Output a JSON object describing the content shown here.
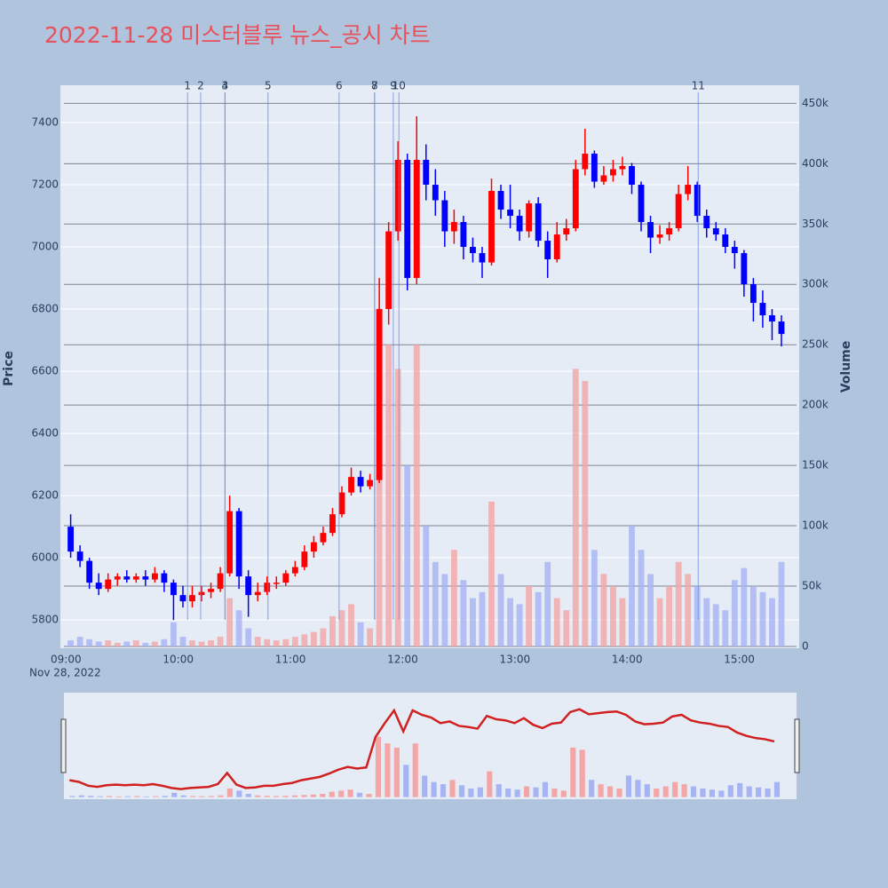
{
  "chart_data": {
    "type": "candlestick",
    "title": "2022-11-28 미스터블루 뉴스_공시 차트",
    "y_label": "Price",
    "y2_label": "Volume",
    "x_date_label": "Nov 28, 2022",
    "xlim": [
      "08:57",
      "15:32"
    ],
    "xticks": [
      "09:00",
      "10:00",
      "11:00",
      "12:00",
      "13:00",
      "14:00",
      "15:00"
    ],
    "ylim": [
      5709,
      7520
    ],
    "yticks": [
      5800,
      6000,
      6200,
      6400,
      6600,
      6800,
      7000,
      7200,
      7400
    ],
    "y2lim": [
      -1500,
      465000
    ],
    "y2ticks": [
      0,
      {
        "value": 50000,
        "label": "50k"
      },
      {
        "value": 100000,
        "label": "100k"
      },
      {
        "value": 150000,
        "label": "150k"
      },
      {
        "value": 200000,
        "label": "200k"
      },
      {
        "value": 250000,
        "label": "250k"
      },
      {
        "value": 300000,
        "label": "300k"
      },
      {
        "value": 350000,
        "label": "350k"
      },
      {
        "value": 400000,
        "label": "400k"
      },
      {
        "value": 450000,
        "label": "450k"
      }
    ],
    "up_color": "#ff0000",
    "down_color": "#0000ff",
    "up_volume_color": "#f4a6a6",
    "down_volume_color": "#a6b4f4",
    "x": [
      "09:00",
      "09:05",
      "09:10",
      "09:15",
      "09:20",
      "09:25",
      "09:30",
      "09:35",
      "09:40",
      "09:45",
      "09:50",
      "09:55",
      "10:00",
      "10:05",
      "10:10",
      "10:15",
      "10:20",
      "10:25",
      "10:30",
      "10:35",
      "10:40",
      "10:45",
      "10:50",
      "10:55",
      "11:00",
      "11:05",
      "11:10",
      "11:15",
      "11:20",
      "11:25",
      "11:30",
      "11:35",
      "11:40",
      "11:45",
      "11:50",
      "11:55",
      "12:00",
      "12:05",
      "12:10",
      "12:15",
      "12:20",
      "12:25",
      "12:30",
      "12:35",
      "12:40",
      "12:45",
      "12:50",
      "12:55",
      "13:00",
      "13:05",
      "13:10",
      "13:15",
      "13:20",
      "13:25",
      "13:30",
      "13:35",
      "13:40",
      "13:45",
      "13:50",
      "13:55",
      "14:00",
      "14:05",
      "14:10",
      "14:15",
      "14:20",
      "14:25",
      "14:30",
      "14:35",
      "14:40",
      "14:45",
      "14:50",
      "14:55",
      "15:00",
      "15:05",
      "15:10",
      "15:15",
      "15:20"
    ],
    "open": [
      6100,
      6020,
      5990,
      5920,
      5900,
      5930,
      5940,
      5930,
      5940,
      5930,
      5950,
      5920,
      5880,
      5860,
      5880,
      5890,
      5900,
      5950,
      6150,
      5940,
      5880,
      5890,
      5920,
      5920,
      5950,
      5970,
      6020,
      6050,
      6080,
      6140,
      6210,
      6260,
      6230,
      6250,
      6800,
      7050,
      7280,
      6900,
      7280,
      7200,
      7150,
      7050,
      7080,
      7000,
      6980,
      6950,
      7180,
      7120,
      7100,
      7050,
      7140,
      7020,
      6960,
      7040,
      7060,
      7250,
      7300,
      7210,
      7230,
      7250,
      7260,
      7200,
      7080,
      7030,
      7040,
      7060,
      7170,
      7200,
      7100,
      7060,
      7040,
      7000,
      6980,
      6880,
      6820,
      6780,
      6760
    ],
    "high": [
      6140,
      6040,
      6000,
      5950,
      5950,
      5950,
      5960,
      5950,
      5960,
      5970,
      5960,
      5930,
      5910,
      5910,
      5910,
      5920,
      5970,
      6200,
      6160,
      5960,
      5920,
      5940,
      5940,
      5960,
      5990,
      6040,
      6070,
      6100,
      6160,
      6230,
      6290,
      6280,
      6270,
      6900,
      7080,
      7340,
      7300,
      7420,
      7330,
      7250,
      7180,
      7120,
      7100,
      7030,
      7000,
      7220,
      7200,
      7200,
      7120,
      7150,
      7160,
      7050,
      7080,
      7090,
      7280,
      7380,
      7310,
      7260,
      7280,
      7290,
      7270,
      7210,
      7100,
      7070,
      7080,
      7200,
      7260,
      7210,
      7120,
      7080,
      7060,
      7020,
      6990,
      6900,
      6860,
      6800,
      6780
    ],
    "low": [
      6000,
      5970,
      5900,
      5880,
      5890,
      5910,
      5920,
      5920,
      5910,
      5920,
      5890,
      5800,
      5840,
      5840,
      5860,
      5870,
      5890,
      5940,
      5900,
      5810,
      5860,
      5880,
      5900,
      5910,
      5940,
      5960,
      6000,
      6040,
      6070,
      6130,
      6200,
      6210,
      6220,
      6240,
      6750,
      7020,
      6860,
      6880,
      7150,
      7100,
      7000,
      7010,
      6960,
      6950,
      6900,
      6940,
      7090,
      7060,
      7020,
      7030,
      7000,
      6900,
      6950,
      7020,
      7050,
      7230,
      7190,
      7200,
      7210,
      7230,
      7170,
      7050,
      6980,
      7010,
      7020,
      7050,
      7150,
      7080,
      7030,
      7020,
      6980,
      6930,
      6840,
      6760,
      6740,
      6700,
      6680
    ],
    "close": [
      6020,
      5990,
      5920,
      5900,
      5930,
      5940,
      5930,
      5940,
      5930,
      5950,
      5920,
      5880,
      5860,
      5880,
      5890,
      5900,
      5950,
      6150,
      5940,
      5880,
      5890,
      5920,
      5920,
      5950,
      5970,
      6020,
      6050,
      6080,
      6140,
      6210,
      6260,
      6230,
      6250,
      6800,
      7050,
      7280,
      6900,
      7280,
      7200,
      7150,
      7050,
      7080,
      7000,
      6980,
      6950,
      7180,
      7120,
      7100,
      7050,
      7140,
      7020,
      6960,
      7040,
      7060,
      7250,
      7300,
      7210,
      7230,
      7250,
      7260,
      7200,
      7080,
      7030,
      7040,
      7060,
      7170,
      7200,
      7100,
      7060,
      7040,
      7000,
      6980,
      6880,
      6820,
      6780,
      6760,
      6720
    ],
    "volume": [
      5000,
      8000,
      6000,
      4000,
      5000,
      3000,
      4000,
      5000,
      3000,
      4000,
      6000,
      20000,
      8000,
      5000,
      4000,
      5000,
      8000,
      40000,
      30000,
      15000,
      8000,
      6000,
      5000,
      6000,
      8000,
      10000,
      12000,
      15000,
      25000,
      30000,
      35000,
      20000,
      15000,
      280000,
      250000,
      230000,
      150000,
      250000,
      100000,
      70000,
      60000,
      80000,
      55000,
      40000,
      45000,
      120000,
      60000,
      40000,
      35000,
      50000,
      45000,
      70000,
      40000,
      30000,
      230000,
      220000,
      80000,
      60000,
      50000,
      40000,
      100000,
      80000,
      60000,
      40000,
      50000,
      70000,
      60000,
      50000,
      40000,
      35000,
      30000,
      55000,
      65000,
      50000,
      45000,
      40000,
      70000
    ],
    "annotations": [
      {
        "label": "1",
        "x": "10:05"
      },
      {
        "label": "2",
        "x": "10:12"
      },
      {
        "label": "3",
        "x": "10:25"
      },
      {
        "label": "4",
        "x": "10:25"
      },
      {
        "label": "5",
        "x": "10:48"
      },
      {
        "label": "6",
        "x": "11:26"
      },
      {
        "label": "7",
        "x": "11:45"
      },
      {
        "label": "8",
        "x": "11:45"
      },
      {
        "label": "9",
        "x": "11:55"
      },
      {
        "label": "10",
        "x": "11:58"
      },
      {
        "label": "11",
        "x": "14:38"
      }
    ]
  }
}
